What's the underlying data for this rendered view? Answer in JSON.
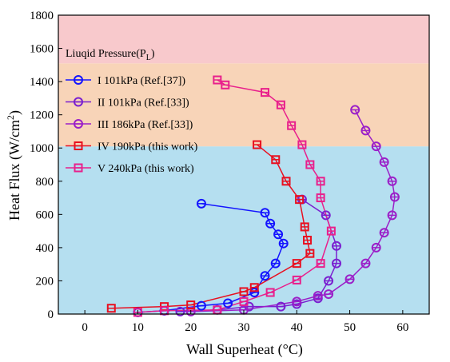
{
  "chart_data": {
    "type": "scatter",
    "xlabel": "Wall Superheat (°C)",
    "ylabel_main": "Heat Flux (W/cm",
    "ylabel_sup": "2",
    "ylabel_tail": ")",
    "xlim": [
      -5,
      65
    ],
    "ylim": [
      0,
      1800
    ],
    "xticks": [
      0,
      10,
      20,
      30,
      40,
      50,
      60
    ],
    "yticks": [
      0,
      200,
      400,
      600,
      800,
      1000,
      1200,
      1400,
      1600,
      1800
    ],
    "bands": [
      {
        "from": 0,
        "to": 1010,
        "color": "#b5dff0"
      },
      {
        "from": 1010,
        "to": 1510,
        "color": "#f8d4b8"
      },
      {
        "from": 1510,
        "to": 1800,
        "color": "#f8c9cc"
      }
    ],
    "band_label": "Liuqid Pressure(P",
    "band_label_sub": "L",
    "band_label_tail": ")",
    "series": [
      {
        "name": "I  101kPa (Ref.[37])",
        "color": "#1414ff",
        "marker": "circle",
        "points": [
          [
            10,
            10
          ],
          [
            15,
            20
          ],
          [
            22,
            50
          ],
          [
            27,
            65
          ],
          [
            32,
            130
          ],
          [
            34,
            230
          ],
          [
            36,
            305
          ],
          [
            37.5,
            425
          ],
          [
            36.5,
            480
          ],
          [
            35,
            545
          ],
          [
            34,
            610
          ],
          [
            22,
            665
          ]
        ]
      },
      {
        "name": "II  101kPa (Ref.[33])",
        "color": "#7a1fd0",
        "marker": "circle",
        "points": [
          [
            18,
            15
          ],
          [
            25,
            25
          ],
          [
            31,
            45
          ],
          [
            37,
            45
          ],
          [
            40,
            60
          ],
          [
            44,
            95
          ],
          [
            46,
            200
          ],
          [
            47.5,
            305
          ],
          [
            47.5,
            410
          ],
          [
            45.5,
            595
          ],
          [
            41,
            690
          ]
        ]
      },
      {
        "name": "III  186kPa (Ref.[33])",
        "color": "#9b1fc8",
        "marker": "circle",
        "points": [
          [
            20,
            15
          ],
          [
            30,
            25
          ],
          [
            40,
            75
          ],
          [
            44,
            110
          ],
          [
            46,
            120
          ],
          [
            50,
            210
          ],
          [
            53,
            305
          ],
          [
            55,
            400
          ],
          [
            56.5,
            490
          ],
          [
            58,
            595
          ],
          [
            58.5,
            705
          ],
          [
            58,
            800
          ],
          [
            56.5,
            915
          ],
          [
            55,
            1010
          ],
          [
            53,
            1105
          ],
          [
            51,
            1230
          ]
        ]
      },
      {
        "name": "IV  190kPa (this work)",
        "color": "#e81020",
        "marker": "square",
        "points": [
          [
            5,
            35
          ],
          [
            15,
            45
          ],
          [
            20,
            55
          ],
          [
            30,
            135
          ],
          [
            32,
            160
          ],
          [
            40,
            305
          ],
          [
            42.5,
            365
          ],
          [
            42,
            445
          ],
          [
            41.5,
            525
          ],
          [
            40.5,
            690
          ],
          [
            38,
            800
          ],
          [
            36,
            930
          ],
          [
            32.5,
            1020
          ]
        ]
      },
      {
        "name": "V  240kPa (this work)",
        "color": "#e8208c",
        "marker": "square",
        "points": [
          [
            10,
            10
          ],
          [
            15,
            20
          ],
          [
            25,
            25
          ],
          [
            30,
            75
          ],
          [
            35,
            130
          ],
          [
            40,
            205
          ],
          [
            44.5,
            305
          ],
          [
            46.5,
            500
          ],
          [
            44.5,
            700
          ],
          [
            44.5,
            800
          ],
          [
            42.5,
            900
          ],
          [
            41,
            1020
          ],
          [
            39,
            1135
          ],
          [
            37,
            1260
          ],
          [
            34,
            1335
          ],
          [
            26.5,
            1380
          ],
          [
            25,
            1410
          ]
        ]
      }
    ]
  }
}
